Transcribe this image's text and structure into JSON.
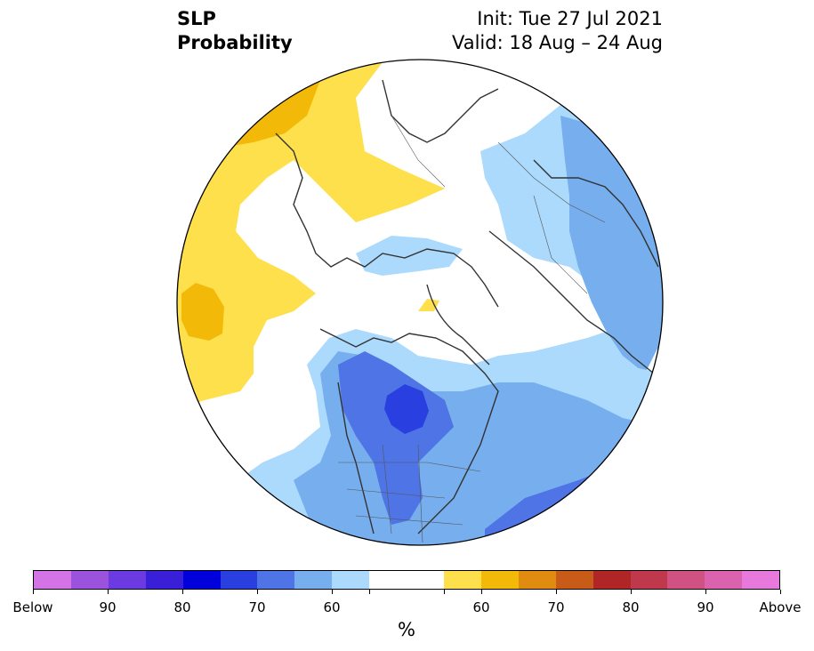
{
  "title": {
    "left_line1": "SLP",
    "left_line2": "Probability",
    "right_line1": "Init: Tue 27 Jul 2021",
    "right_line2": "Valid: 18 Aug – 24 Aug"
  },
  "legend": {
    "unit": "%",
    "colors": [
      "#d473e6",
      "#9b52dd",
      "#6b3ae0",
      "#3a1fd8",
      "#0000dd",
      "#2a3fe0",
      "#4e74e6",
      "#76aeee",
      "#abdafc",
      "#ffffff",
      "#ffffff",
      "#fee04d",
      "#f2b908",
      "#df8c10",
      "#c85b18",
      "#b02525",
      "#c0384c",
      "#cf5282",
      "#db62ae",
      "#e879dc"
    ],
    "tick_labels": [
      "Below",
      "90",
      "80",
      "70",
      "60",
      "60",
      "70",
      "80",
      "90",
      "Above"
    ]
  },
  "map": {
    "projection": "north-polar-stereographic",
    "shading_colors": {
      "below_50_60": "#abdafc",
      "below_60_70": "#76aeee",
      "below_70_80": "#4e74e6",
      "below_80_90": "#2a3fe0",
      "above_50_60": "#fee04d",
      "above_60_70": "#f2b908",
      "neutral": "#ffffff"
    }
  }
}
